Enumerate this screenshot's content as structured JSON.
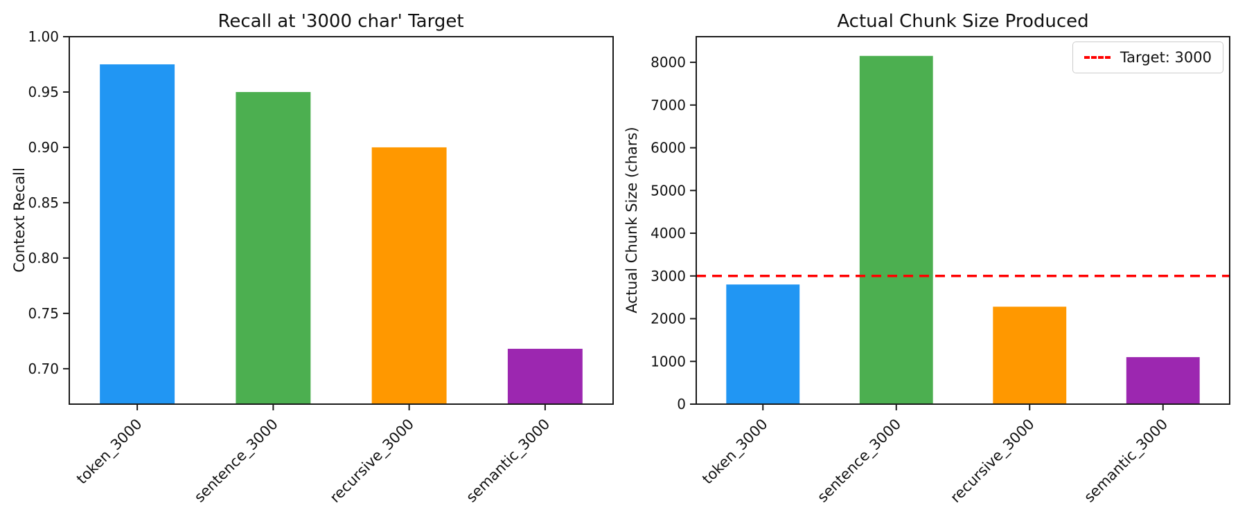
{
  "figure": {
    "background": "#ffffff",
    "text_color": "#111111"
  },
  "chart_data": [
    {
      "type": "bar",
      "title": "Recall at '3000 char' Target",
      "xlabel": "",
      "ylabel": "Context Recall",
      "categories": [
        "token_3000",
        "sentence_3000",
        "recursive_3000",
        "semantic_3000"
      ],
      "values": [
        0.975,
        0.95,
        0.9,
        0.718
      ],
      "bar_colors": [
        "#2196F3",
        "#4CAF50",
        "#FF9800",
        "#9C27B0"
      ],
      "ylim": [
        0.668,
        1.0
      ],
      "yticks": [
        0.7,
        0.75,
        0.8,
        0.85,
        0.9,
        0.95,
        1.0
      ],
      "ytick_labels": [
        "0.70",
        "0.75",
        "0.80",
        "0.85",
        "0.90",
        "0.95",
        "1.00"
      ],
      "xtick_rotation_deg": 45,
      "grid": false,
      "legend": null
    },
    {
      "type": "bar",
      "title": "Actual Chunk Size Produced",
      "xlabel": "",
      "ylabel": "Actual Chunk Size (chars)",
      "categories": [
        "token_3000",
        "sentence_3000",
        "recursive_3000",
        "semantic_3000"
      ],
      "values": [
        2800,
        8150,
        2280,
        1100
      ],
      "bar_colors": [
        "#2196F3",
        "#4CAF50",
        "#FF9800",
        "#9C27B0"
      ],
      "ylim": [
        0,
        8600
      ],
      "yticks": [
        0,
        1000,
        2000,
        3000,
        4000,
        5000,
        6000,
        7000,
        8000
      ],
      "ytick_labels": [
        "0",
        "1000",
        "2000",
        "3000",
        "4000",
        "5000",
        "6000",
        "7000",
        "8000"
      ],
      "xtick_rotation_deg": 45,
      "grid": false,
      "target_line": {
        "value": 3000,
        "color": "#ff0000",
        "style": "dashed",
        "label": "Target: 3000"
      },
      "legend": {
        "position": "upper right",
        "entries": [
          {
            "sample": "red-dashed-line",
            "label": "Target: 3000"
          }
        ]
      }
    }
  ]
}
